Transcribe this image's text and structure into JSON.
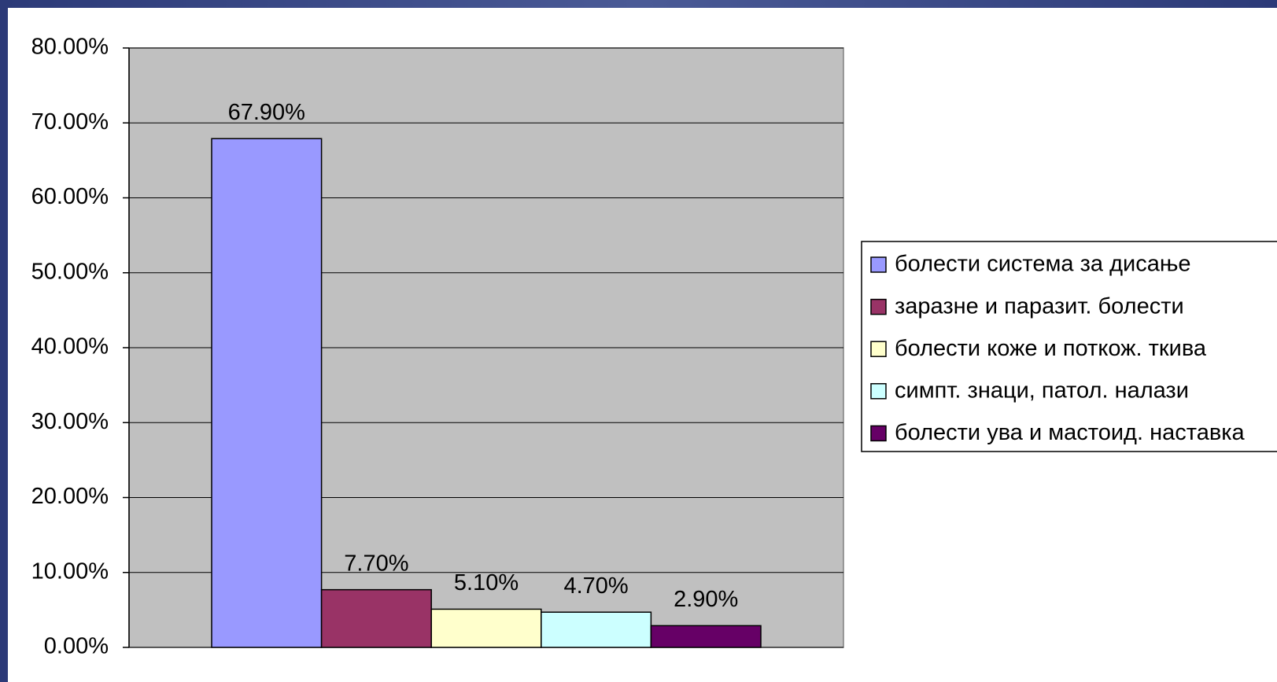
{
  "chart_data": {
    "type": "bar",
    "series": [
      {
        "name": "болести система за дисање",
        "color": "#9999ff",
        "values": [
          67.9
        ],
        "value_labels": [
          "67.90%"
        ]
      },
      {
        "name": "заразне и паразит. болести",
        "color": "#993366",
        "values": [
          7.7
        ],
        "value_labels": [
          "7.70%"
        ]
      },
      {
        "name": "болести коже и поткож. ткива",
        "color": "#ffffcc",
        "values": [
          5.1
        ],
        "value_labels": [
          "5.10%"
        ]
      },
      {
        "name": "симпт. знаци, патол. налази",
        "color": "#ccffff",
        "values": [
          4.7
        ],
        "value_labels": [
          "4.70%"
        ]
      },
      {
        "name": "болести ува и мастоид. наставка",
        "color": "#660066",
        "values": [
          2.9
        ],
        "value_labels": [
          "2.90%"
        ]
      }
    ],
    "ylim": [
      0,
      80
    ],
    "yticks": [
      {
        "value": 0,
        "label": "0.00%"
      },
      {
        "value": 10,
        "label": "10.00%"
      },
      {
        "value": 20,
        "label": "20.00%"
      },
      {
        "value": 30,
        "label": "30.00%"
      },
      {
        "value": 40,
        "label": "40.00%"
      },
      {
        "value": 50,
        "label": "50.00%"
      },
      {
        "value": 60,
        "label": "60.00%"
      },
      {
        "value": 70,
        "label": "70.00%"
      },
      {
        "value": 80,
        "label": "80.00%"
      }
    ],
    "grid": true,
    "legend": "right"
  }
}
